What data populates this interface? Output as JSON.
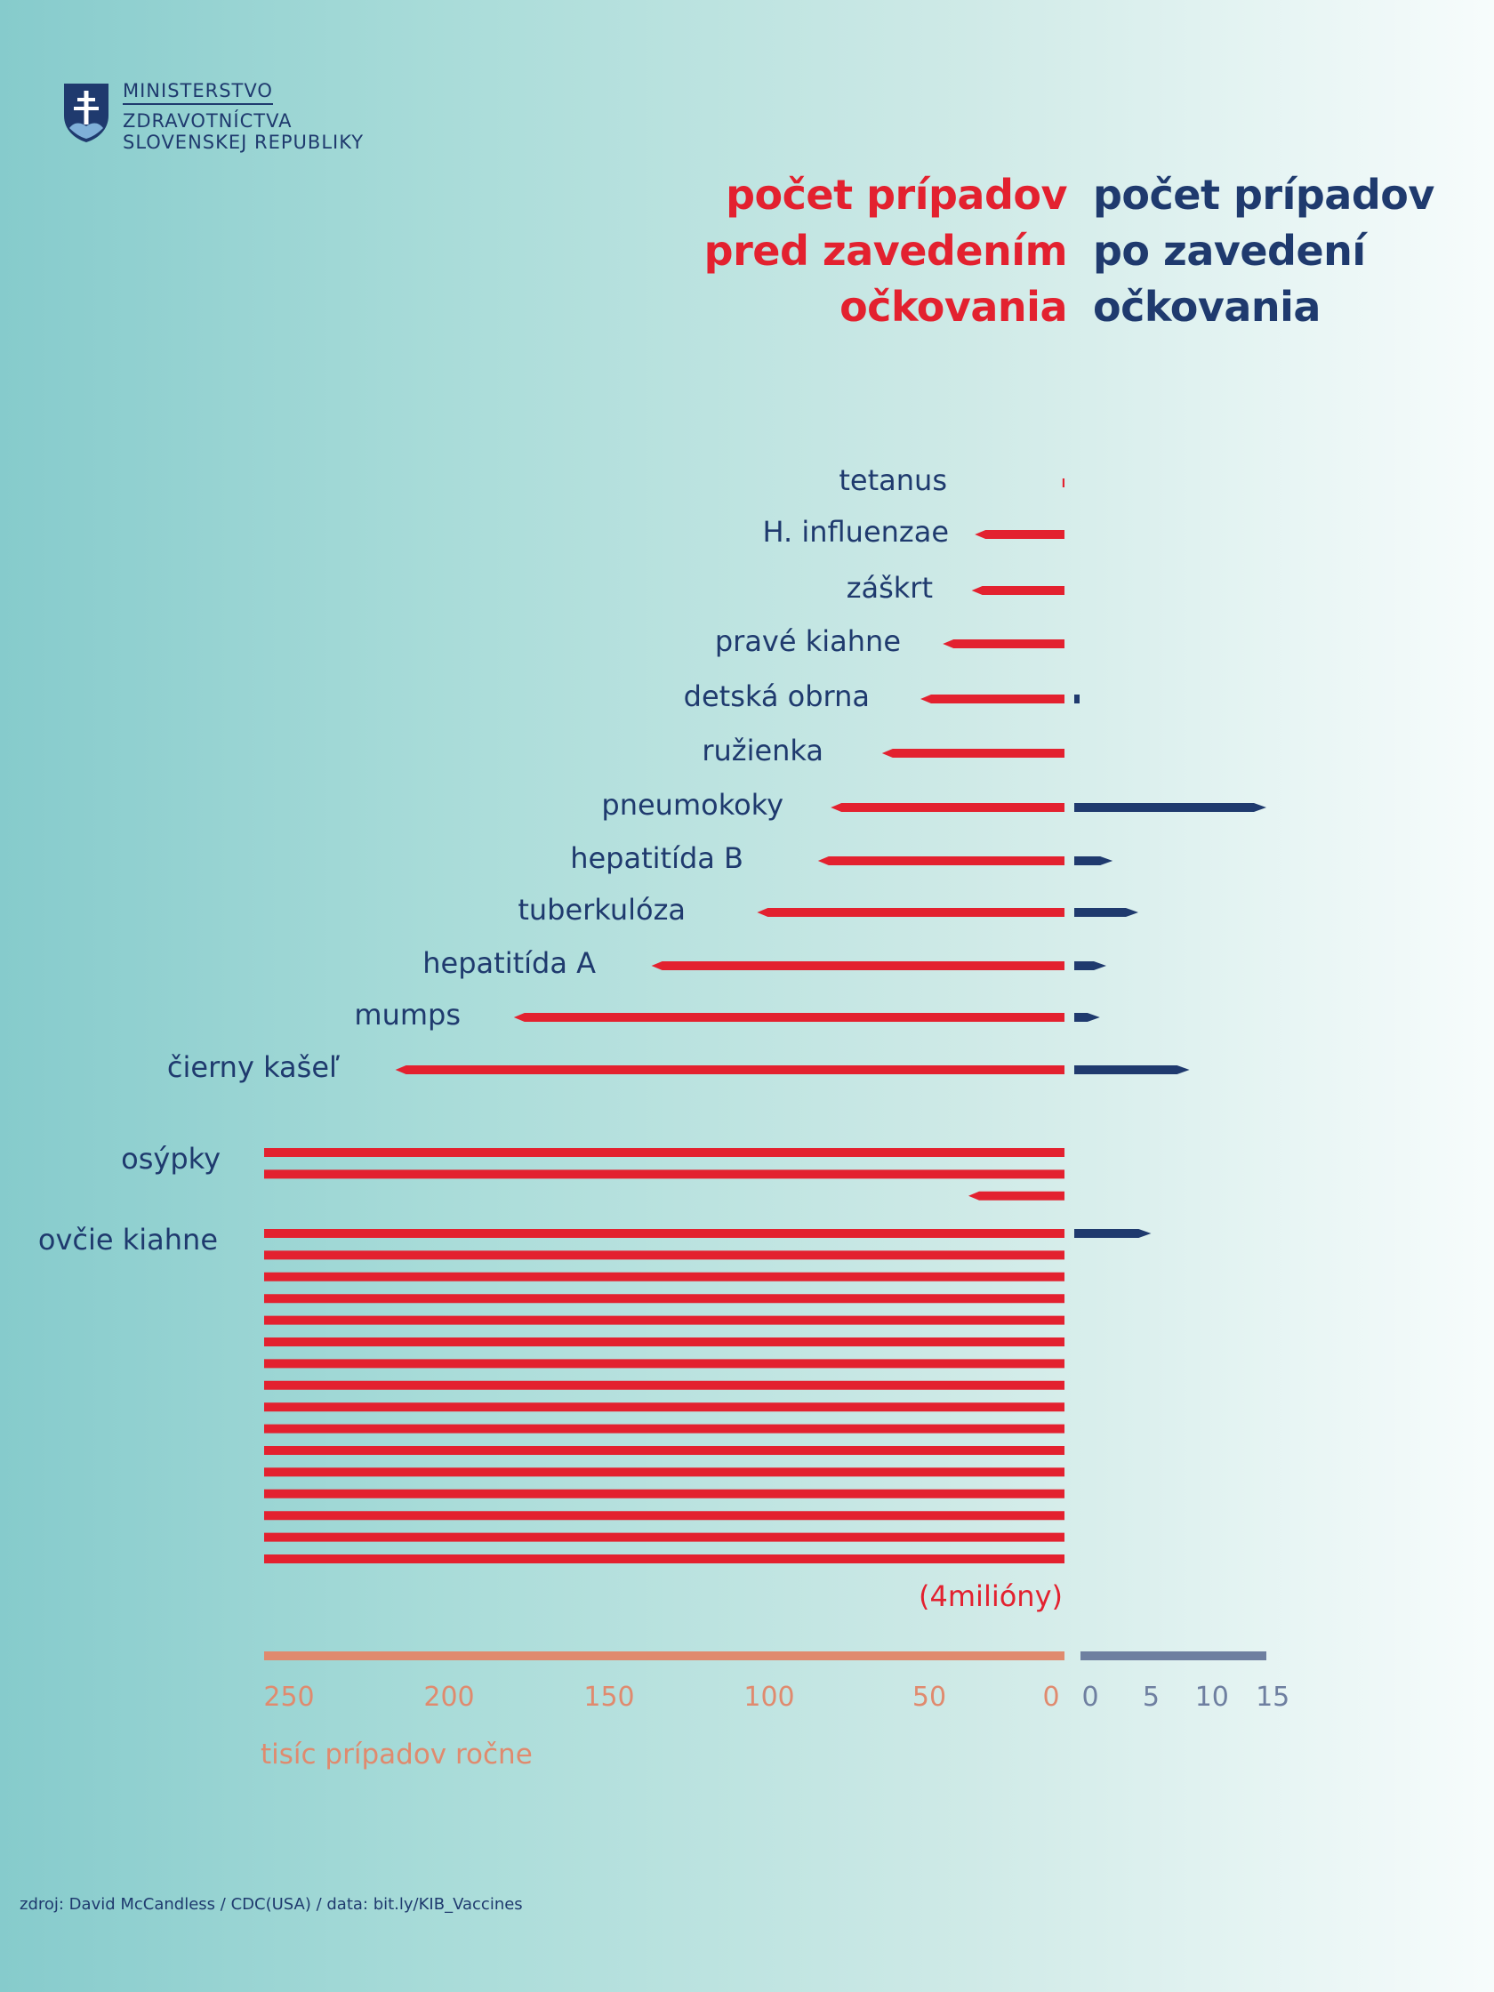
{
  "logo": {
    "line1": "MINISTERSTVO",
    "line2": "ZDRAVOTNÍCTVA",
    "line3": "SLOVENSKEJ REPUBLIKY",
    "icon": "slovak-coat-of-arms-icon"
  },
  "legend": {
    "before": [
      "počet prípadov",
      "pred zavedením",
      "očkovania"
    ],
    "after": [
      "počet prípadov",
      "po zavedení",
      "očkovania"
    ]
  },
  "colors": {
    "before": "#e3212f",
    "after": "#1f3a6e",
    "axis_before": "#e08a6e",
    "axis_after": "#6e7fa0"
  },
  "chart_data": {
    "type": "bar",
    "orientation": "horizontal-diverging",
    "categories": [
      "tetanus",
      "H. influenzae",
      "záškrt",
      "pravé kiahne",
      "detská obrna",
      "ružienka",
      "pneumokoky",
      "hepatitída B",
      "tuberkulóza",
      "hepatitída A",
      "mumps",
      "čierny kašeľ",
      "osýpky",
      "ovčie kiahne"
    ],
    "series": [
      {
        "name": "počet prípadov pred zavedením očkovania",
        "values": [
          0.6,
          28,
          29,
          38,
          45,
          57,
          73,
          77,
          96,
          129,
          172,
          209,
          530,
          4000
        ]
      },
      {
        "name": "počet prípadov po zavedení očkovania",
        "values": [
          0,
          0,
          0,
          0,
          0.3,
          0,
          15,
          3,
          5,
          2.5,
          2,
          9,
          0,
          6
        ]
      }
    ],
    "bar_cap_value": 250,
    "annotation": "(4milióny)",
    "left_axis": {
      "ticks": [
        250,
        200,
        150,
        100,
        50,
        0
      ],
      "range": [
        0,
        250
      ]
    },
    "right_axis": {
      "ticks": [
        0,
        5,
        10,
        15
      ],
      "range": [
        0,
        15
      ]
    },
    "xlabel": "tisíc prípadov ročne"
  },
  "source": "zdroj: David McCandless / CDC(USA) /  data: bit.ly/KIB_Vaccines"
}
